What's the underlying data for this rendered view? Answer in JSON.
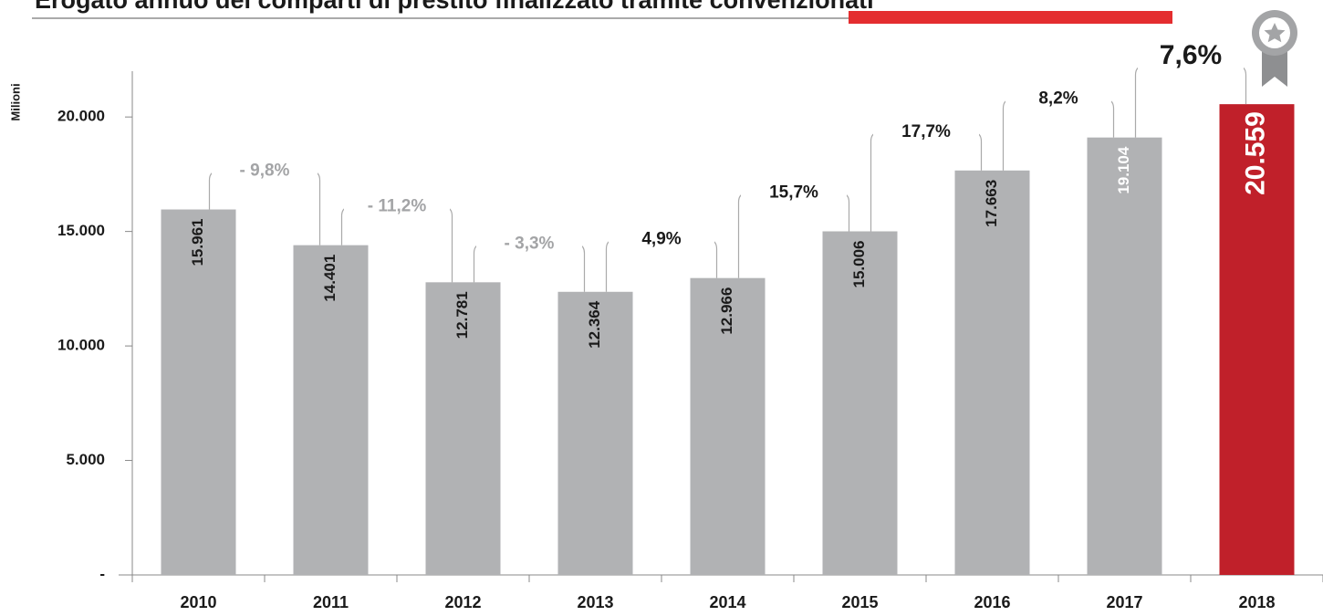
{
  "chart_data": {
    "type": "bar",
    "title": "Erogato annuo dei comparti di prestito finalizzato tramite convenzionati",
    "y_label": "Milioni",
    "categories": [
      "2010",
      "2011",
      "2012",
      "2013",
      "2014",
      "2015",
      "2016",
      "2017",
      "2018"
    ],
    "values": [
      15961,
      14401,
      12781,
      12364,
      12966,
      15006,
      17663,
      19104,
      20559
    ],
    "value_labels": [
      "15.961",
      "14.401",
      "12.781",
      "12.364",
      "12.966",
      "15.006",
      "17.663",
      "19.104",
      "20.559"
    ],
    "colors": [
      "#b1b2b4",
      "#b1b2b4",
      "#b1b2b4",
      "#b1b2b4",
      "#b1b2b4",
      "#b1b2b4",
      "#b1b2b4",
      "#b1b2b4",
      "#c0202a"
    ],
    "label_colors": [
      "#1a1a1a",
      "#1a1a1a",
      "#1a1a1a",
      "#1a1a1a",
      "#1a1a1a",
      "#1a1a1a",
      "#1a1a1a",
      "#ffffff",
      "#ffffff"
    ],
    "growth": [
      -9.8,
      -11.2,
      -3.3,
      4.9,
      15.7,
      17.7,
      8.2,
      7.6
    ],
    "growth_labels": [
      "- 9,8%",
      "- 11,2%",
      "- 3,3%",
      "4,9%",
      "15,7%",
      "17,7%",
      "8,2%",
      "7,6%"
    ],
    "ylim": [
      0,
      22000
    ],
    "yticks": [
      {
        "value": 0,
        "label": "-"
      },
      {
        "value": 5000,
        "label": "5.000"
      },
      {
        "value": 10000,
        "label": "10.000"
      },
      {
        "value": 15000,
        "label": "15.000"
      },
      {
        "value": 20000,
        "label": "20.000"
      }
    ]
  }
}
